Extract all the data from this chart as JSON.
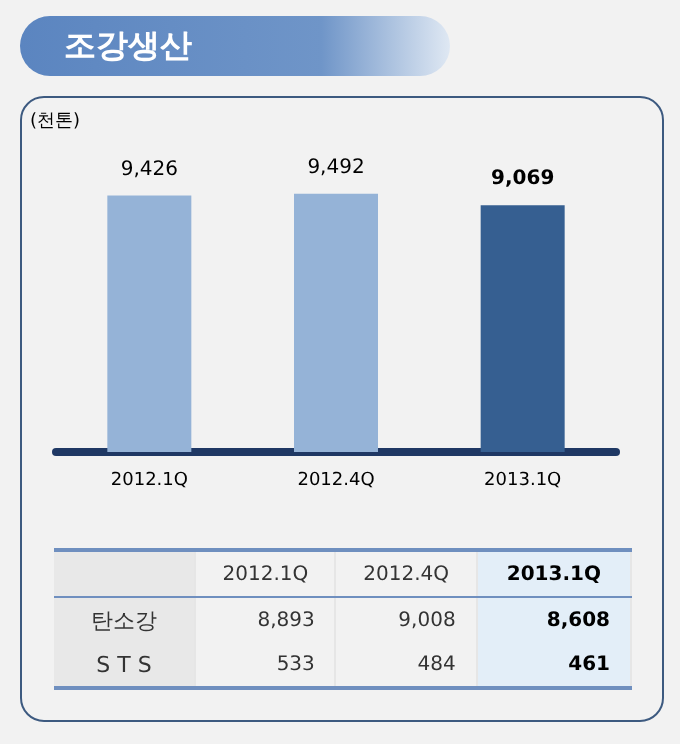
{
  "chart_data": {
    "type": "bar",
    "title": "조강생산",
    "ylabel": "(천톤)",
    "categories": [
      "2012.1Q",
      "2012.4Q",
      "2013.1Q"
    ],
    "values": [
      9426,
      9492,
      9069
    ],
    "colors": [
      "#95b3d7",
      "#95b3d7",
      "#365f91"
    ],
    "value_labels": [
      "9,426",
      "9,492",
      "9,069"
    ],
    "annotations": [
      "탄소강",
      "8,893",
      "9,008",
      "8,608",
      "S T S",
      "533",
      "484",
      "461"
    ]
  }
}
